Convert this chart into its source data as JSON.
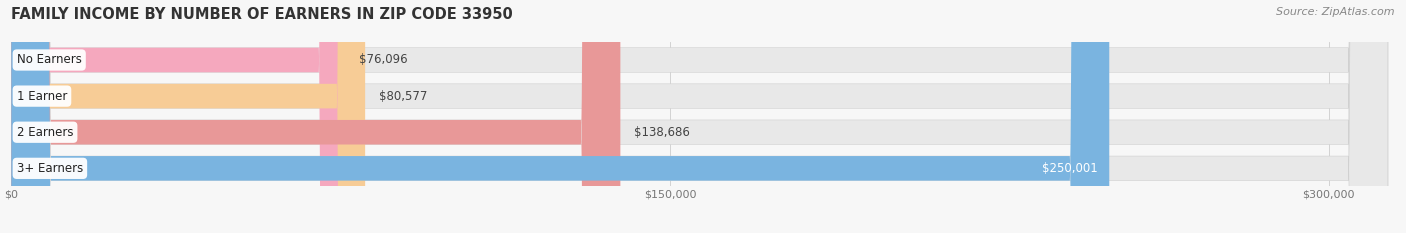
{
  "title": "FAMILY INCOME BY NUMBER OF EARNERS IN ZIP CODE 33950",
  "source": "Source: ZipAtlas.com",
  "categories": [
    "No Earners",
    "1 Earner",
    "2 Earners",
    "3+ Earners"
  ],
  "values": [
    76096,
    80577,
    138686,
    250001
  ],
  "bar_colors": [
    "#f5a8be",
    "#f7cc96",
    "#e89898",
    "#7ab4e0"
  ],
  "bar_bg_color": "#e8e8e8",
  "value_labels": [
    "$76,096",
    "$80,577",
    "$138,686",
    "$250,001"
  ],
  "x_ticks": [
    0,
    150000,
    300000
  ],
  "x_tick_labels": [
    "$0",
    "$150,000",
    "$300,000"
  ],
  "xlim_max": 315000,
  "title_fontsize": 10.5,
  "source_fontsize": 8,
  "label_fontsize": 8.5,
  "tick_fontsize": 8,
  "bg_color": "#f7f7f7",
  "bar_height": 0.68,
  "value_label_color_inside": "white",
  "value_label_color_outside": "#444444"
}
